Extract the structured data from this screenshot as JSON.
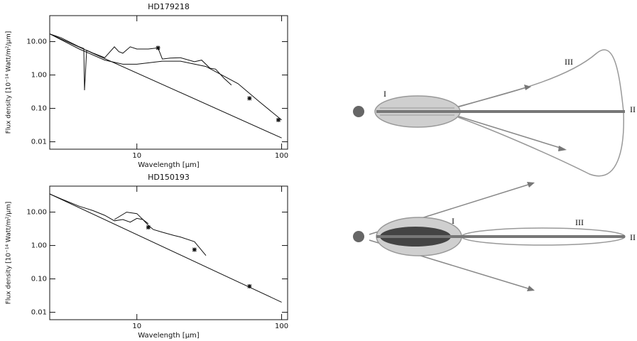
{
  "chart_data": [
    {
      "type": "line",
      "title": "HD179218",
      "xlabel": "Wavelength [μm]",
      "ylabel": "Flux density [10⁻¹⁴ Watt/m²/μm]",
      "xscale": "log",
      "yscale": "log",
      "xlim": [
        2.5,
        110
      ],
      "ylim": [
        0.006,
        60
      ],
      "xticks": [
        10,
        100
      ],
      "yticks": [
        0.01,
        {
          "value": 0.1,
          "label": "0.10"
        },
        {
          "value": 1,
          "label": "1.00"
        },
        {
          "value": 10,
          "label": "10.00"
        }
      ],
      "series": [
        {
          "color": "#111111",
          "style": "line",
          "x": [
            2.5,
            100
          ],
          "values": [
            17,
            0.013
          ]
        },
        {
          "color": "#111111",
          "style": "line",
          "x": [
            2.5,
            4,
            6,
            8,
            10,
            15,
            20,
            30,
            50,
            70,
            100
          ],
          "values": [
            17,
            6,
            2.8,
            2.1,
            2.1,
            2.6,
            2.6,
            1.8,
            0.55,
            0.16,
            0.045
          ]
        },
        {
          "color": "#111111",
          "style": "line",
          "x": [
            2.5,
            3,
            4,
            4.3,
            4.35,
            4.5,
            5,
            6,
            7,
            7.5,
            8,
            9,
            10,
            12,
            14,
            15,
            17,
            20,
            25,
            28,
            32,
            35,
            40,
            45
          ],
          "values": [
            17,
            13,
            7,
            6.2,
            0.35,
            5.5,
            4.5,
            3.3,
            7,
            5,
            4.5,
            7,
            6,
            6,
            6.5,
            3,
            3.2,
            3.3,
            2.5,
            2.8,
            1.6,
            1.5,
            0.8,
            0.5
          ]
        },
        {
          "color": "#111111",
          "style": "marker",
          "x": [
            14,
            60,
            95
          ],
          "values": [
            6.5,
            0.2,
            0.045
          ]
        }
      ]
    },
    {
      "type": "line",
      "title": "HD150193",
      "xlabel": "Wavelength [μm]",
      "ylabel": "Flux density [10⁻¹⁴ Watt/m²/μm]",
      "xscale": "log",
      "yscale": "log",
      "xlim": [
        2.5,
        110
      ],
      "ylim": [
        0.006,
        60
      ],
      "xticks": [
        10,
        100
      ],
      "yticks": [
        0.01,
        {
          "value": 0.1,
          "label": "0.10"
        },
        {
          "value": 1,
          "label": "1.00"
        },
        {
          "value": 10,
          "label": "10.00"
        }
      ],
      "series": [
        {
          "color": "#111111",
          "style": "line",
          "x": [
            2.5,
            100
          ],
          "values": [
            35,
            0.02
          ]
        },
        {
          "color": "#111111",
          "style": "line",
          "x": [
            7,
            8.5,
            10,
            11,
            12
          ],
          "values": [
            6,
            10,
            9,
            6,
            4.5
          ]
        },
        {
          "color": "#111111",
          "style": "line",
          "x": [
            2.5,
            3,
            4,
            5,
            6,
            7,
            8,
            9,
            10,
            11,
            12,
            13,
            15,
            18,
            20,
            25,
            30
          ],
          "values": [
            35,
            25,
            15,
            11,
            8,
            5.5,
            6,
            5,
            6.5,
            6,
            4,
            3,
            2.5,
            2,
            1.8,
            1.3,
            0.5
          ]
        },
        {
          "color": "#111111",
          "style": "marker",
          "x": [
            12,
            25,
            60
          ],
          "values": [
            3.5,
            0.75,
            0.06
          ]
        }
      ]
    }
  ],
  "diagrams": [
    {
      "labels": [
        "I",
        "II",
        "III"
      ]
    },
    {
      "labels": [
        "I",
        "III",
        "II"
      ]
    }
  ]
}
